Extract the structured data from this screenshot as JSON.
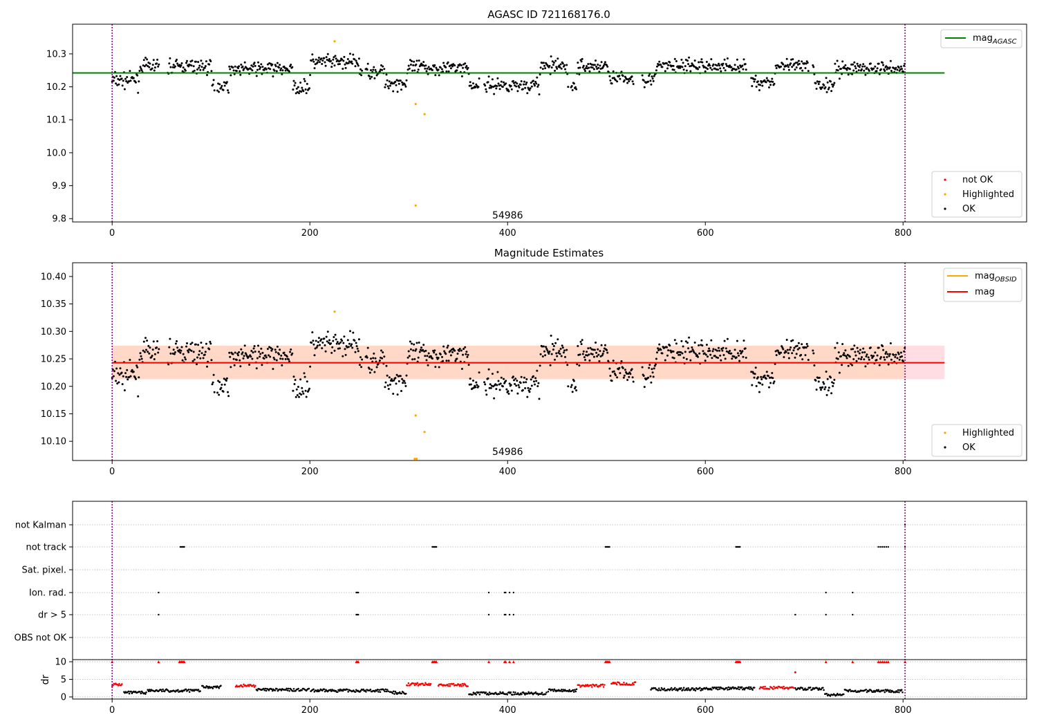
{
  "chart_data": [
    {
      "type": "scatter",
      "title": "AGASC ID 721168176.0",
      "xlim": [
        -40,
        925
      ],
      "ylim": [
        9.79,
        10.39
      ],
      "x_ticks": [
        0,
        200,
        400,
        600,
        800
      ],
      "y_ticks": [
        9.8,
        9.9,
        10.0,
        10.1,
        10.2,
        10.3
      ],
      "y_tick_labels": [
        "9.8",
        "9.9",
        "10.0",
        "10.1",
        "10.2",
        "10.3"
      ],
      "annotation": {
        "text": "54986",
        "x": 400,
        "y": 9.8
      },
      "vlines": [
        0,
        802
      ],
      "hline": {
        "name": "mag_AGASC",
        "value": 10.242,
        "xmax": 842,
        "color": "#008000"
      },
      "highlighted": [
        {
          "x": 225,
          "y": 10.338
        },
        {
          "x": 307,
          "y": 10.148
        },
        {
          "x": 316,
          "y": 10.117
        },
        {
          "x": 307,
          "y": 9.84
        }
      ],
      "legend_upper": [
        {
          "label": "mag",
          "sub": "AGASC",
          "color": "#008000"
        }
      ],
      "legend_lower": [
        {
          "label": "not OK",
          "color": "#ff0000"
        },
        {
          "label": "Highlighted",
          "color": "#ffa500"
        },
        {
          "label": "OK",
          "color": "#000000"
        }
      ]
    },
    {
      "type": "scatter",
      "title": "Magnitude Estimates",
      "xlim": [
        -40,
        925
      ],
      "ylim": [
        10.065,
        10.425
      ],
      "x_ticks": [
        0,
        200,
        400,
        600,
        800
      ],
      "y_ticks": [
        10.1,
        10.15,
        10.2,
        10.25,
        10.3,
        10.35,
        10.4
      ],
      "y_tick_labels": [
        "10.10",
        "10.15",
        "10.20",
        "10.25",
        "10.30",
        "10.35",
        "10.40"
      ],
      "annotation": {
        "text": "54986",
        "x": 400,
        "y": 10.075
      },
      "vlines": [
        0,
        802
      ],
      "mag_line": {
        "name": "mag",
        "value": 10.243,
        "color": "#ff0000"
      },
      "mag_obsid_line": {
        "name": "mag_OBSID",
        "value": 10.243,
        "color": "#ffa500"
      },
      "band_obsid": {
        "low": 10.213,
        "high": 10.274,
        "xmax": 802,
        "color": "#ffd8c8"
      },
      "band_mag": {
        "low": 10.213,
        "high": 10.274,
        "xmax": 842,
        "color": "#ffdde3"
      },
      "highlighted": [
        {
          "x": 225,
          "y": 10.336
        },
        {
          "x": 307,
          "y": 10.147
        },
        {
          "x": 316,
          "y": 10.117
        },
        {
          "x": 306,
          "y": 10.068
        },
        {
          "x": 308,
          "y": 10.068
        }
      ],
      "legend_upper": [
        {
          "label": "mag",
          "sub": "OBSID",
          "color": "#ffa500"
        },
        {
          "label": "mag",
          "sub": "",
          "color": "#ff0000"
        }
      ],
      "legend_lower": [
        {
          "label": "Highlighted",
          "color": "#ffa500"
        },
        {
          "label": "OK",
          "color": "#000000"
        }
      ]
    },
    {
      "type": "scatter",
      "xlim": [
        -40,
        925
      ],
      "x_ticks": [
        0,
        200,
        400,
        600,
        800
      ],
      "vlines": [
        0,
        802
      ],
      "flag_categories": [
        "not Kalman",
        "not track",
        "Sat. pixel.",
        "Ion. rad.",
        "dr > 5",
        "OBS not OK"
      ],
      "flags": {
        "not Kalman": [
          802
        ],
        "not track": [
          69,
          70,
          71,
          72,
          73,
          324,
          325,
          326,
          327,
          328,
          499,
          500,
          501,
          502,
          503,
          631,
          632,
          633,
          634,
          635,
          775,
          777,
          779,
          781,
          783,
          785,
          802
        ],
        "Sat. pixel.": [],
        "Ion. rad.": [
          47,
          247,
          248,
          249,
          381,
          397,
          398,
          402,
          406,
          722,
          749
        ],
        "dr > 5": [
          47,
          247,
          248,
          249,
          381,
          397,
          398,
          402,
          406,
          691,
          722,
          749
        ],
        "OBS not OK": []
      },
      "dr_ylim": [
        -0.6,
        10.6
      ],
      "dr_y_ticks": [
        0,
        5,
        10
      ],
      "dr_y_tick_labels": [
        "0",
        "5",
        "10"
      ],
      "dr_ylabel": "dr",
      "dr_not_ok_capped": [
        0,
        47,
        68,
        69,
        70,
        71,
        72,
        73,
        247,
        248,
        249,
        324,
        325,
        326,
        327,
        328,
        381,
        397,
        398,
        402,
        406,
        499,
        500,
        501,
        502,
        503,
        631,
        632,
        633,
        634,
        635,
        722,
        749,
        775,
        777,
        779,
        781,
        783,
        785,
        802
      ],
      "dr_not_ok_other": [
        {
          "x": 691,
          "y": 7
        }
      ]
    }
  ],
  "colors": {
    "ok": "#000000",
    "highlighted": "#ffa500",
    "not_ok": "#ff0000",
    "vline": "#800080",
    "grid": "#b0b0b0"
  }
}
